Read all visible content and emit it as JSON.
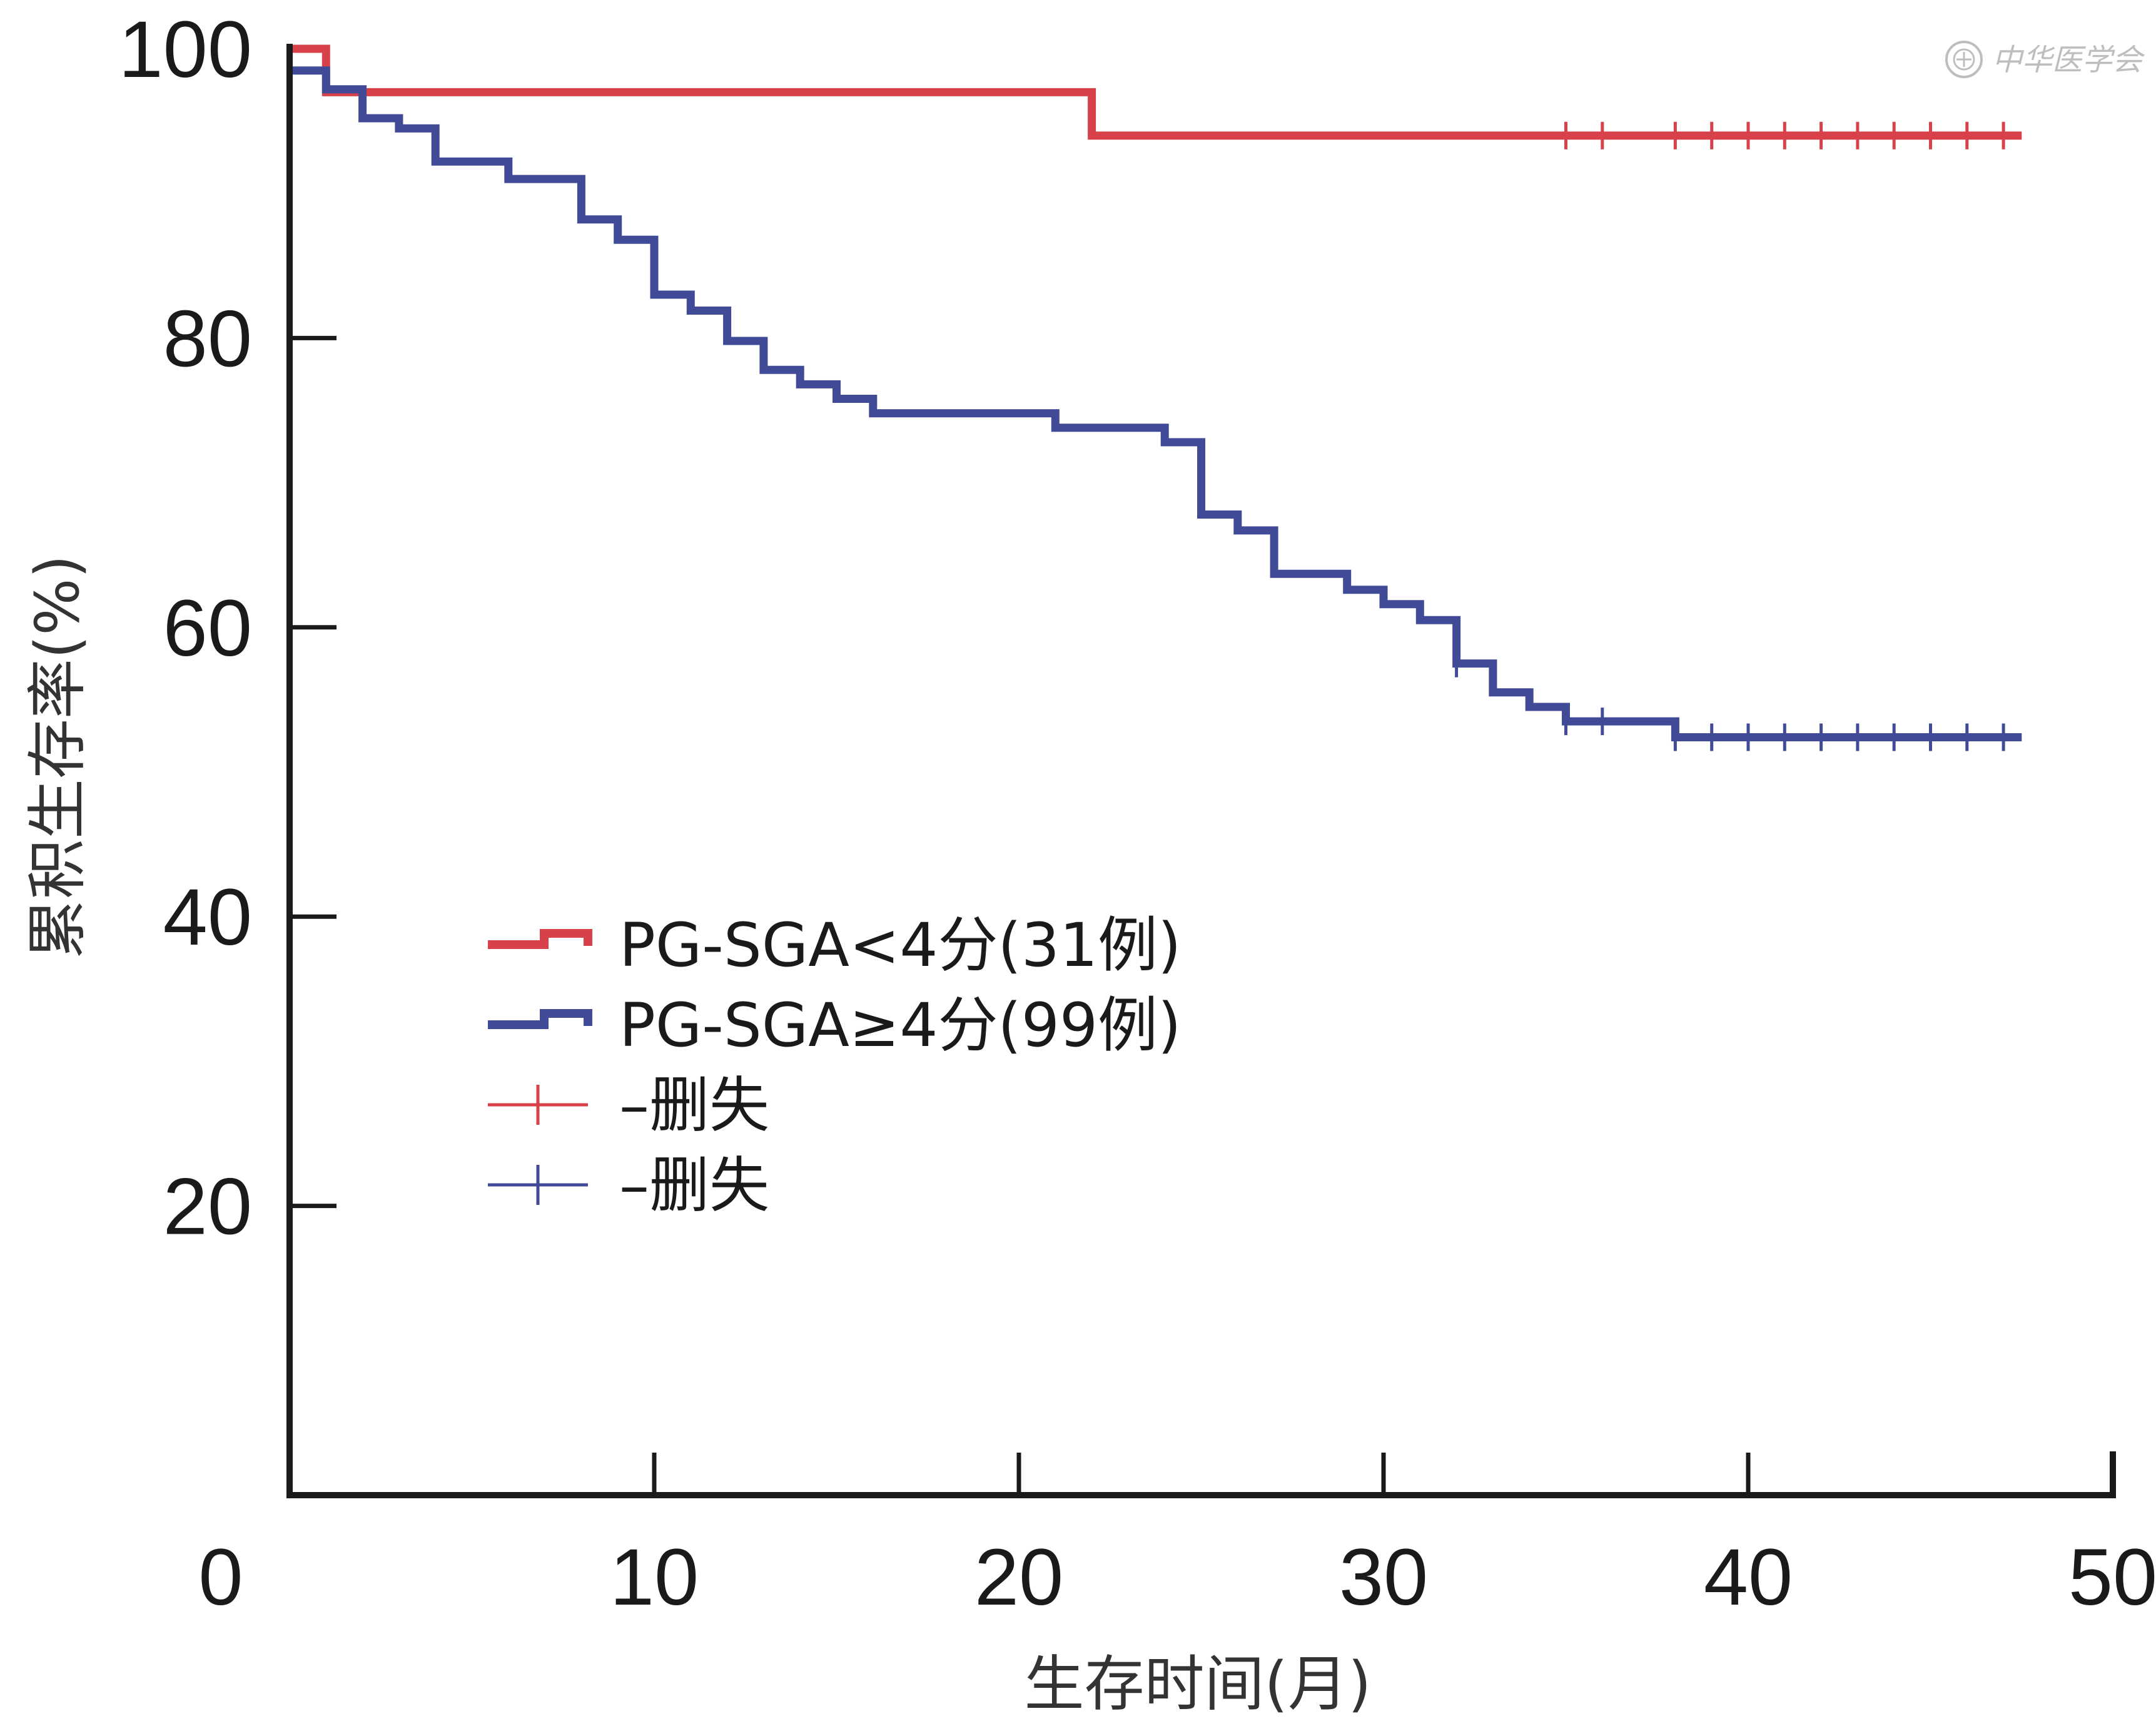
{
  "chart_data": {
    "type": "line",
    "step": true,
    "xlabel": "生存时间(月)",
    "ylabel": "累积生存率(%)",
    "xlim": [
      0,
      50
    ],
    "ylim": [
      0,
      100
    ],
    "xticks": [
      0,
      10,
      20,
      30,
      40,
      50
    ],
    "yticks": [
      20,
      40,
      60,
      80,
      100
    ],
    "grid": false,
    "legend_position": "center-left",
    "series": [
      {
        "name": "PG-SGA<4分(31例)",
        "color": "#d9414a",
        "steps": [
          [
            0,
            100
          ],
          [
            1,
            100
          ],
          [
            1,
            97
          ],
          [
            22,
            97
          ],
          [
            22,
            94
          ],
          [
            47.5,
            94
          ]
        ],
        "censored": [
          35,
          36,
          38,
          39,
          40,
          41,
          42,
          43,
          44,
          45,
          46,
          47
        ]
      },
      {
        "name": "PG-SGA≥4分(99例)",
        "color": "#414a96",
        "steps": [
          [
            0,
            98.5
          ],
          [
            1,
            98.5
          ],
          [
            1,
            97.2
          ],
          [
            2,
            97.2
          ],
          [
            2,
            95.2
          ],
          [
            3,
            95.2
          ],
          [
            3,
            94.5
          ],
          [
            4,
            94.5
          ],
          [
            4,
            92.2
          ],
          [
            6,
            92.2
          ],
          [
            6,
            91
          ],
          [
            8,
            91
          ],
          [
            8,
            88.2
          ],
          [
            9,
            88.2
          ],
          [
            9,
            86.8
          ],
          [
            10,
            86.8
          ],
          [
            10,
            83
          ],
          [
            11,
            83
          ],
          [
            11,
            81.9
          ],
          [
            12,
            81.9
          ],
          [
            12,
            79.8
          ],
          [
            13,
            79.8
          ],
          [
            13,
            77.8
          ],
          [
            14,
            77.8
          ],
          [
            14,
            76.8
          ],
          [
            15,
            76.8
          ],
          [
            15,
            75.8
          ],
          [
            16,
            75.8
          ],
          [
            16,
            74.8
          ],
          [
            21,
            74.8
          ],
          [
            21,
            73.8
          ],
          [
            24,
            73.8
          ],
          [
            24,
            72.8
          ],
          [
            25,
            72.8
          ],
          [
            25,
            67.8
          ],
          [
            26,
            67.8
          ],
          [
            26,
            66.7
          ],
          [
            27,
            66.7
          ],
          [
            27,
            63.7
          ],
          [
            29,
            63.7
          ],
          [
            29,
            62.6
          ],
          [
            30,
            62.6
          ],
          [
            30,
            61.6
          ],
          [
            31,
            61.6
          ],
          [
            31,
            60.5
          ],
          [
            32,
            60.5
          ],
          [
            32,
            57.5
          ],
          [
            33,
            57.5
          ],
          [
            33,
            55.5
          ],
          [
            34,
            55.5
          ],
          [
            34,
            54.5
          ],
          [
            35,
            54.5
          ],
          [
            35,
            53.5
          ],
          [
            38,
            53.5
          ],
          [
            38,
            52.4
          ],
          [
            47.5,
            52.4
          ]
        ],
        "censored": [
          32,
          35,
          36,
          38,
          39,
          40,
          41,
          42,
          43,
          44,
          45,
          46,
          47
        ]
      }
    ],
    "legend_entries": [
      "PG-SGA<4分(31例)",
      "PG-SGA≥4分(99例)",
      "–删失",
      "–删失"
    ]
  },
  "legend": {
    "entries": [
      {
        "label": "PG-SGA<4分(31例)",
        "kind": "step-line",
        "color": "#d9414a"
      },
      {
        "label": "PG-SGA≥4分(99例)",
        "kind": "step-line",
        "color": "#414a96"
      },
      {
        "label": "–删失",
        "kind": "censor-mark",
        "color": "#d9414a"
      },
      {
        "label": "–删失",
        "kind": "censor-mark",
        "color": "#414a96"
      }
    ]
  },
  "watermark": {
    "text": "中华医学会",
    "icon": "society-seal-icon"
  }
}
